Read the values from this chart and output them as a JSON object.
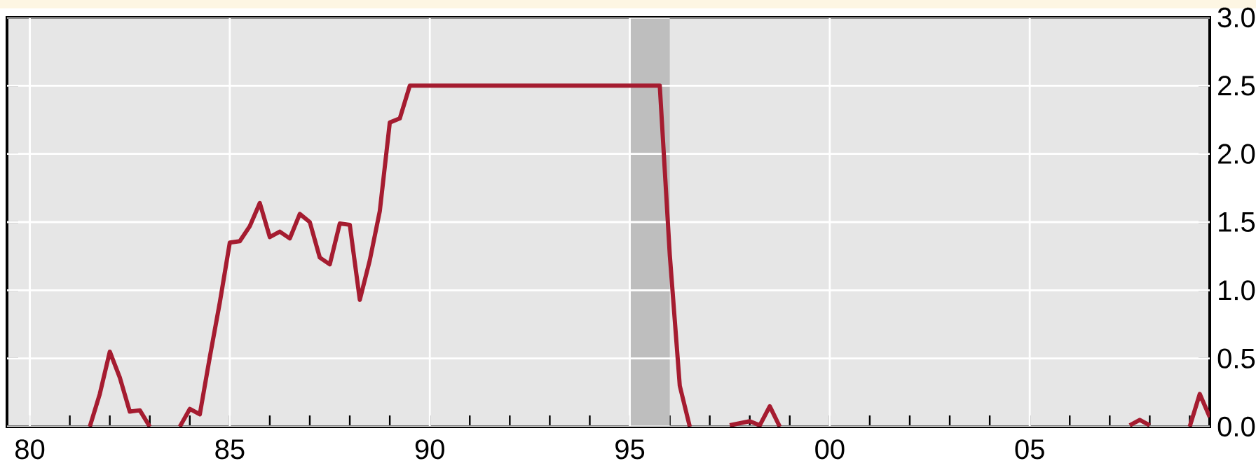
{
  "chart_data": {
    "type": "line",
    "xlim": [
      1979.43,
      2009.5
    ],
    "ylim": [
      0,
      3
    ],
    "xticks": [
      {
        "value": 1980,
        "label": "80"
      },
      {
        "value": 1985,
        "label": "85"
      },
      {
        "value": 1990,
        "label": "90"
      },
      {
        "value": 1995,
        "label": "95"
      },
      {
        "value": 2000,
        "label": "00"
      },
      {
        "value": 2005,
        "label": "05"
      },
      {
        "value": 1981,
        "label": null
      },
      {
        "value": 1982,
        "label": null
      },
      {
        "value": 1983,
        "label": null
      },
      {
        "value": 1984,
        "label": null
      },
      {
        "value": 1986,
        "label": null
      },
      {
        "value": 1987,
        "label": null
      },
      {
        "value": 1988,
        "label": null
      },
      {
        "value": 1989,
        "label": null
      },
      {
        "value": 1991,
        "label": null
      },
      {
        "value": 1992,
        "label": null
      },
      {
        "value": 1993,
        "label": null
      },
      {
        "value": 1994,
        "label": null
      },
      {
        "value": 1996,
        "label": null
      },
      {
        "value": 1997,
        "label": null
      },
      {
        "value": 1998,
        "label": null
      },
      {
        "value": 1999,
        "label": null
      },
      {
        "value": 2001,
        "label": null
      },
      {
        "value": 2002,
        "label": null
      },
      {
        "value": 2003,
        "label": null
      },
      {
        "value": 2004,
        "label": null
      },
      {
        "value": 2006,
        "label": null
      },
      {
        "value": 2007,
        "label": null
      },
      {
        "value": 2008,
        "label": null
      },
      {
        "value": 2009,
        "label": null
      }
    ],
    "yticks": [
      {
        "value": 0,
        "label": "0.0"
      },
      {
        "value": 0.5,
        "label": "0.5"
      },
      {
        "value": 1,
        "label": "1.0"
      },
      {
        "value": 1.5,
        "label": "1.5"
      },
      {
        "value": 2,
        "label": "2.0"
      },
      {
        "value": 2.5,
        "label": "2.5"
      },
      {
        "value": 3,
        "label": "3.0"
      }
    ],
    "grid": true,
    "marker": "none",
    "line_style": "solid",
    "bands": [
      {
        "axis": "x",
        "from": 1995,
        "to": 1996,
        "color": "#bebebe"
      }
    ],
    "series": [
      {
        "color": "#a51c30",
        "x": [
          1981.5,
          1981.75,
          1982,
          1982.25,
          1982.5,
          1982.75,
          1983,
          1983.25,
          1983.75,
          1984,
          1984.25,
          1984.5,
          1984.75,
          1985,
          1985.25,
          1985.5,
          1985.75,
          1986,
          1986.25,
          1986.5,
          1986.75,
          1987,
          1987.25,
          1987.5,
          1987.75,
          1988,
          1988.25,
          1988.5,
          1988.75,
          1989,
          1989.25,
          1989.5,
          1995.75,
          1996,
          1996.25,
          1996.5,
          1996.75,
          1997.5,
          1998,
          1998.25,
          1998.5,
          1998.75,
          1999,
          2007.5,
          2007.75,
          2008,
          2008.25,
          2009,
          2009.25,
          2009.5
        ],
        "values": [
          0,
          0.24,
          0.55,
          0.36,
          0.11,
          0.12,
          0,
          null,
          0,
          0.13,
          0.09,
          0.51,
          0.91,
          1.35,
          1.36,
          1.47,
          1.64,
          1.39,
          1.43,
          1.38,
          1.56,
          1.5,
          1.24,
          1.19,
          1.49,
          1.48,
          0.93,
          1.22,
          1.58,
          2.23,
          2.26,
          2.5,
          2.5,
          1.26,
          0.3,
          0,
          null,
          0.01,
          0.04,
          0.01,
          0.15,
          0,
          null,
          0.01,
          0.05,
          0.01,
          null,
          0,
          0.24,
          0.07
        ]
      }
    ]
  }
}
